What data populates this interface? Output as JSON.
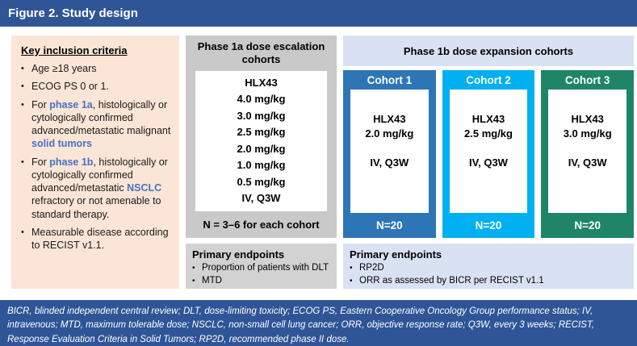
{
  "figure": {
    "title": "Figure 2. Study design"
  },
  "colors": {
    "header_bar": "#2F5597",
    "footer_bar": "#2F5597",
    "inclusion_bg": "#FBE5D6",
    "accent_text": "#4472C4",
    "phase1a_bg": "#C9C9C9",
    "phase1a_endpoints_bg": "#D2D2D2",
    "phase1b_bg": "#D9E2F3",
    "bullet_glyph": "•"
  },
  "inclusion": {
    "heading": "Key inclusion criteria",
    "bullets": [
      {
        "text": "Age ≥18 years"
      },
      {
        "text": "ECOG PS 0 or 1."
      },
      {
        "pre": "For ",
        "accent1": "phase 1a",
        "mid": ", histologically or cytologically confirmed advanced/metastatic malignant ",
        "accent2": "solid tumors"
      },
      {
        "pre": "For ",
        "accent1": "phase 1b",
        "mid": ", histologically or cytologically confirmed advanced/metastatic ",
        "accent2": "NSCLC",
        "post": " refractory or not amenable to standard therapy."
      },
      {
        "text": "Measurable disease according to RECIST v1.1."
      }
    ]
  },
  "phase1a": {
    "header": "Phase 1a dose escalation cohorts",
    "doses": [
      "HLX43",
      "4.0 mg/kg",
      "3.0 mg/kg",
      "2.5 mg/kg",
      "2.0 mg/kg",
      "1.0 mg/kg",
      "0.5 mg/kg",
      "IV, Q3W"
    ],
    "note": "N = 3–6 for each cohort",
    "endpoints": {
      "heading": "Primary endpoints",
      "items": [
        "Proportion of patients with DLT",
        "MTD"
      ]
    }
  },
  "phase1b": {
    "header": "Phase 1b dose expansion cohorts",
    "cohorts": [
      {
        "title": "Cohort 1",
        "drug": "HLX43",
        "dose": "2.0 mg/kg",
        "schedule": "IV, Q3W",
        "n": "N=20",
        "color": "#2E75B6"
      },
      {
        "title": "Cohort 2",
        "drug": "HLX43",
        "dose": "2.5 mg/kg",
        "schedule": "IV, Q3W",
        "n": "N=20",
        "color": "#00B0F0"
      },
      {
        "title": "Cohort 3",
        "drug": "HLX43",
        "dose": "3.0 mg/kg",
        "schedule": "IV, Q3W",
        "n": "N=20",
        "color": "#1E8567"
      }
    ],
    "endpoints": {
      "heading": "Primary endpoints",
      "items": [
        "RP2D",
        "ORR as assessed by BICR per RECIST v1.1"
      ]
    }
  },
  "footnote": "BICR, blinded independent central review; DLT, dose-limiting toxicity; ECOG PS, Eastern Cooperative Oncology Group performance status; IV, intravenous; MTD, maximum tolerable dose; NSCLC, non-small cell lung cancer; ORR, objective response rate; Q3W, every 3 weeks; RECIST, Response Evaluation Criteria in Solid Tumors; RP2D, recommended phase II dose."
}
